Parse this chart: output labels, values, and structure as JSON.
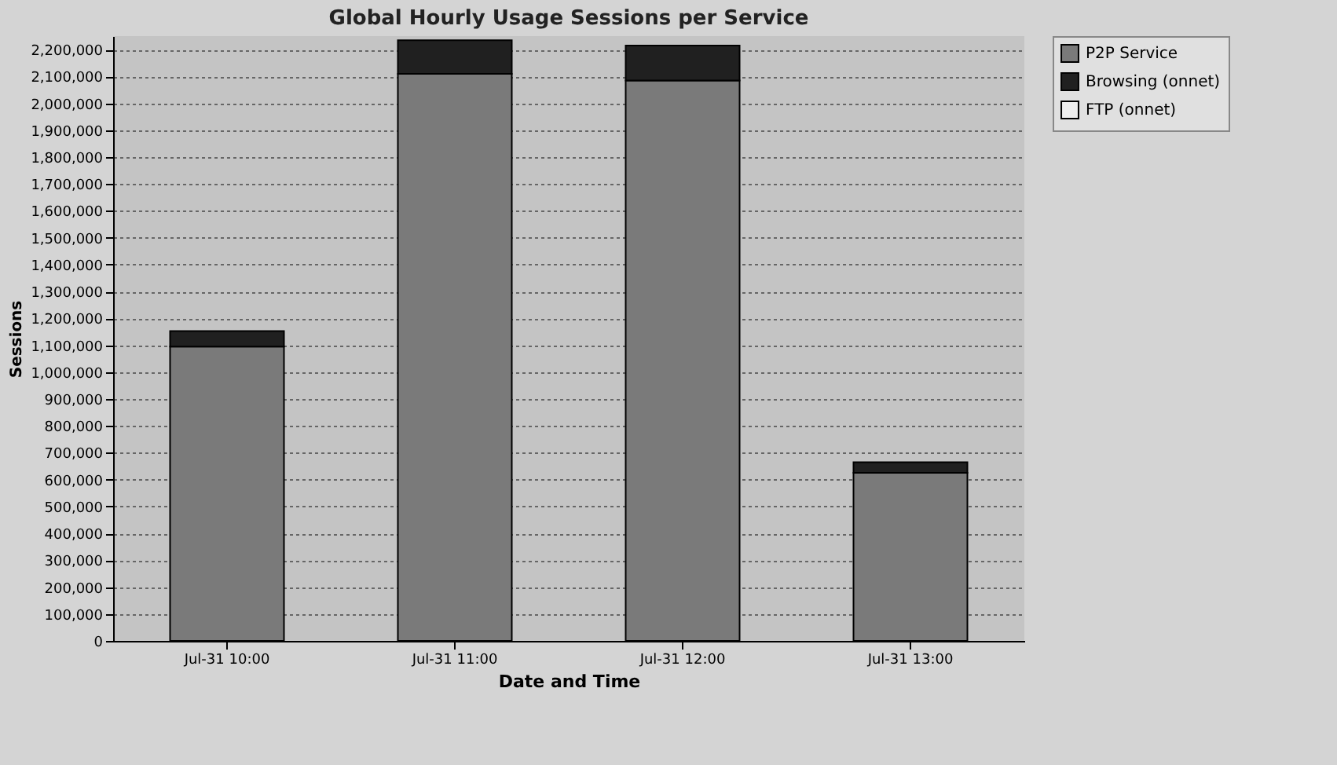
{
  "chart_data": {
    "type": "bar",
    "title": "Global Hourly Usage Sessions per Service",
    "xlabel": "Date and Time",
    "ylabel": "Sessions",
    "categories": [
      "Jul-31 10:00",
      "Jul-31 11:00",
      "Jul-31 12:00",
      "Jul-31 13:00"
    ],
    "stacked": true,
    "series": [
      {
        "name": "P2P Service",
        "color": "#7a7a7a",
        "values": [
          1095000,
          2110000,
          2085000,
          625000
        ]
      },
      {
        "name": "Browsing (onnet)",
        "color": "#202020",
        "values": [
          58000,
          125000,
          130000,
          40000
        ]
      },
      {
        "name": "FTP (onnet)",
        "color": "#eeeeee",
        "values": [
          0,
          0,
          0,
          0
        ]
      }
    ],
    "ylim": [
      0,
      2250000
    ],
    "yticks": [
      {
        "value": 0,
        "label": "0"
      },
      {
        "value": 100000,
        "label": "100,000"
      },
      {
        "value": 200000,
        "label": "200,000"
      },
      {
        "value": 300000,
        "label": "300,000"
      },
      {
        "value": 400000,
        "label": "400,000"
      },
      {
        "value": 500000,
        "label": "500,000"
      },
      {
        "value": 600000,
        "label": "600,000"
      },
      {
        "value": 700000,
        "label": "700,000"
      },
      {
        "value": 800000,
        "label": "800,000"
      },
      {
        "value": 900000,
        "label": "900,000"
      },
      {
        "value": 1000000,
        "label": "1,000,000"
      },
      {
        "value": 1100000,
        "label": "1,100,000"
      },
      {
        "value": 1200000,
        "label": "1,200,000"
      },
      {
        "value": 1300000,
        "label": "1,300,000"
      },
      {
        "value": 1400000,
        "label": "1,400,000"
      },
      {
        "value": 1500000,
        "label": "1,500,000"
      },
      {
        "value": 1600000,
        "label": "1,600,000"
      },
      {
        "value": 1700000,
        "label": "1,700,000"
      },
      {
        "value": 1800000,
        "label": "1,800,000"
      },
      {
        "value": 1900000,
        "label": "1,900,000"
      },
      {
        "value": 2000000,
        "label": "2,000,000"
      },
      {
        "value": 2100000,
        "label": "2,100,000"
      },
      {
        "value": 2200000,
        "label": "2,200,000"
      }
    ],
    "grid": "y",
    "legend": "top right"
  }
}
